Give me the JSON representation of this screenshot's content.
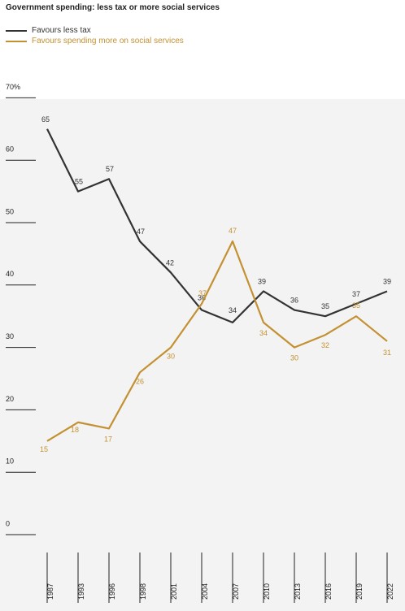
{
  "title": "Government spending: less tax or more social services",
  "colors": {
    "less_tax": "#333333",
    "social": "#c49132",
    "plot_bg": "#f3f3f3"
  },
  "chart_data": {
    "type": "line",
    "title": "Government spending: less tax or more social services",
    "x": [
      "1987",
      "1993",
      "1996",
      "1998",
      "2001",
      "2004",
      "2007",
      "2010",
      "2013",
      "2016",
      "2019",
      "2022"
    ],
    "series": [
      {
        "name": "Favours less tax",
        "color": "#333333",
        "values": [
          65,
          55,
          57,
          47,
          42,
          36,
          34,
          39,
          36,
          35,
          37,
          39
        ]
      },
      {
        "name": "Favours spending more on social services",
        "color": "#c49132",
        "values": [
          15,
          18,
          17,
          26,
          30,
          37,
          47,
          34,
          30,
          32,
          35,
          31
        ]
      }
    ],
    "ylim": [
      0,
      70
    ],
    "y_ticks": [
      0,
      10,
      20,
      30,
      40,
      50,
      60,
      70
    ],
    "y_tick_labels": [
      "0",
      "10",
      "20",
      "30",
      "40",
      "50",
      "60",
      "70%"
    ],
    "legend": "top-left",
    "grid": false
  }
}
